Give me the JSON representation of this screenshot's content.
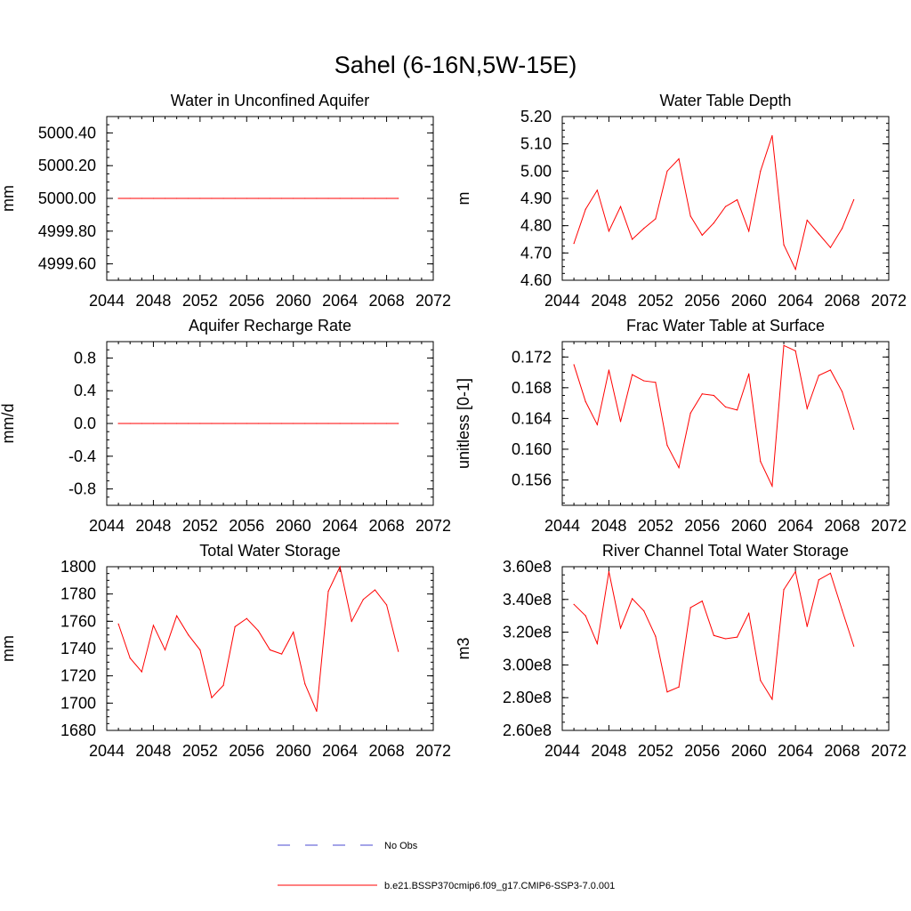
{
  "figure_title": "Sahel (6-16N,5W-15E)",
  "legend": {
    "entries": [
      {
        "label": "No Obs",
        "color": "#4a4ad0",
        "dash": true
      },
      {
        "label": "b.e21.BSSP370cmip6.f09_g17.CMIP6-SSP3-7.0.001",
        "color": "#ff0000",
        "dash": false
      }
    ]
  },
  "colors": {
    "series": "#ff0000",
    "axis": "#000000"
  },
  "chart_data": [
    {
      "type": "line",
      "title": "Water in Unconfined Aquifer",
      "xlabel": "",
      "ylabel": "mm",
      "xlim": [
        2044,
        2072
      ],
      "ylim": [
        4999.5,
        5000.5
      ],
      "xticks": [
        "2044",
        "2048",
        "2052",
        "2056",
        "2060",
        "2064",
        "2068",
        "2072"
      ],
      "yticks": [
        "4999.60",
        "4999.80",
        "5000.00",
        "5000.20",
        "5000.40"
      ],
      "series": [
        {
          "x": [
            2045,
            2046,
            2047,
            2048,
            2049,
            2050,
            2051,
            2052,
            2053,
            2054,
            2055,
            2056,
            2057,
            2058,
            2059,
            2060,
            2061,
            2062,
            2063,
            2064,
            2065,
            2066,
            2067,
            2068,
            2069
          ],
          "values": [
            5000,
            5000,
            5000,
            5000,
            5000,
            5000,
            5000,
            5000,
            5000,
            5000,
            5000,
            5000,
            5000,
            5000,
            5000,
            5000,
            5000,
            5000,
            5000,
            5000,
            5000,
            5000,
            5000,
            5000,
            5000
          ]
        }
      ]
    },
    {
      "type": "line",
      "title": "Water Table Depth",
      "xlabel": "",
      "ylabel": "m",
      "xlim": [
        2044,
        2072
      ],
      "ylim": [
        4.6,
        5.2
      ],
      "xticks": [
        "2044",
        "2048",
        "2052",
        "2056",
        "2060",
        "2064",
        "2068",
        "2072"
      ],
      "yticks": [
        "4.60",
        "4.70",
        "4.80",
        "4.90",
        "5.00",
        "5.10",
        "5.20"
      ],
      "series": [
        {
          "x": [
            2045,
            2046,
            2047,
            2048,
            2049,
            2050,
            2051,
            2052,
            2053,
            2054,
            2055,
            2056,
            2057,
            2058,
            2059,
            2060,
            2061,
            2062,
            2063,
            2064,
            2065,
            2066,
            2067,
            2068,
            2069
          ],
          "values": [
            4.735,
            4.86,
            4.93,
            4.78,
            4.87,
            4.75,
            4.79,
            4.825,
            5.0,
            5.045,
            4.835,
            4.765,
            4.81,
            4.87,
            4.895,
            4.78,
            5.0,
            5.13,
            4.73,
            4.64,
            4.82,
            4.77,
            4.72,
            4.79,
            4.895
          ]
        }
      ]
    },
    {
      "type": "line",
      "title": "Aquifer Recharge Rate",
      "xlabel": "",
      "ylabel": "mm/d",
      "xlim": [
        2044,
        2072
      ],
      "ylim": [
        -1.0,
        1.0
      ],
      "xticks": [
        "2044",
        "2048",
        "2052",
        "2056",
        "2060",
        "2064",
        "2068",
        "2072"
      ],
      "yticks": [
        "-0.8",
        "-0.4",
        "0.0",
        "0.4",
        "0.8"
      ],
      "series": [
        {
          "x": [
            2045,
            2046,
            2047,
            2048,
            2049,
            2050,
            2051,
            2052,
            2053,
            2054,
            2055,
            2056,
            2057,
            2058,
            2059,
            2060,
            2061,
            2062,
            2063,
            2064,
            2065,
            2066,
            2067,
            2068,
            2069
          ],
          "values": [
            0,
            0,
            0,
            0,
            0,
            0,
            0,
            0,
            0,
            0,
            0,
            0,
            0,
            0,
            0,
            0,
            0,
            0,
            0,
            0,
            0,
            0,
            0,
            0,
            0
          ]
        }
      ]
    },
    {
      "type": "line",
      "title": "Frac Water Table at Surface",
      "xlabel": "",
      "ylabel": "unitless [0-1]",
      "xlim": [
        2044,
        2072
      ],
      "ylim": [
        0.1527,
        0.174
      ],
      "xticks": [
        "2044",
        "2048",
        "2052",
        "2056",
        "2060",
        "2064",
        "2068",
        "2072"
      ],
      "yticks": [
        "0.156",
        "0.160",
        "0.164",
        "0.168",
        "0.172"
      ],
      "series": [
        {
          "x": [
            2045,
            2046,
            2047,
            2048,
            2049,
            2050,
            2051,
            2052,
            2053,
            2054,
            2055,
            2056,
            2057,
            2058,
            2059,
            2060,
            2061,
            2062,
            2063,
            2064,
            2065,
            2066,
            2067,
            2068,
            2069
          ],
          "values": [
            0.171,
            0.1662,
            0.1632,
            0.1703,
            0.1636,
            0.1697,
            0.1689,
            0.1687,
            0.1605,
            0.1576,
            0.1647,
            0.1672,
            0.167,
            0.1655,
            0.1651,
            0.1698,
            0.1584,
            0.1552,
            0.1735,
            0.1728,
            0.1653,
            0.1696,
            0.1703,
            0.1675,
            0.1626
          ]
        }
      ]
    },
    {
      "type": "line",
      "title": "Total Water Storage",
      "xlabel": "",
      "ylabel": "mm",
      "xlim": [
        2044,
        2072
      ],
      "ylim": [
        1680,
        1800
      ],
      "xticks": [
        "2044",
        "2048",
        "2052",
        "2056",
        "2060",
        "2064",
        "2068",
        "2072"
      ],
      "yticks": [
        "1680",
        "1700",
        "1720",
        "1740",
        "1760",
        "1780",
        "1800"
      ],
      "series": [
        {
          "x": [
            2045,
            2046,
            2047,
            2048,
            2049,
            2050,
            2051,
            2052,
            2053,
            2054,
            2055,
            2056,
            2057,
            2058,
            2059,
            2060,
            2061,
            2062,
            2063,
            2064,
            2065,
            2066,
            2067,
            2068,
            2069
          ],
          "values": [
            1758,
            1733,
            1723,
            1757,
            1739,
            1764,
            1750,
            1739,
            1704,
            1713,
            1756,
            1762,
            1753,
            1739,
            1736,
            1752,
            1714,
            1694,
            1782,
            1800,
            1760,
            1776,
            1783,
            1772,
            1738
          ]
        }
      ]
    },
    {
      "type": "line",
      "title": "River Channel Total Water Storage",
      "xlabel": "",
      "ylabel": "m3",
      "xlim": [
        2044,
        2072
      ],
      "ylim": [
        260000000.0,
        360000000.0
      ],
      "xticks": [
        "2044",
        "2048",
        "2052",
        "2056",
        "2060",
        "2064",
        "2068",
        "2072"
      ],
      "yticks": [
        "2.60e8",
        "2.80e8",
        "3.00e8",
        "3.20e8",
        "3.40e8",
        "3.60e8"
      ],
      "series": [
        {
          "x": [
            2045,
            2046,
            2047,
            2048,
            2049,
            2050,
            2051,
            2052,
            2053,
            2054,
            2055,
            2056,
            2057,
            2058,
            2059,
            2060,
            2061,
            2062,
            2063,
            2064,
            2065,
            2066,
            2067,
            2068,
            2069
          ],
          "values": [
            337000000.0,
            330000000.0,
            313000000.0,
            357000000.0,
            322500000.0,
            340500000.0,
            333000000.0,
            317500000.0,
            283500000.0,
            286500000.0,
            335000000.0,
            339000000.0,
            318000000.0,
            316000000.0,
            317000000.0,
            331500000.0,
            290500000.0,
            279000000.0,
            346000000.0,
            357000000.0,
            323500000.0,
            352000000.0,
            356000000.0,
            333500000.0,
            311500000.0
          ]
        }
      ]
    }
  ]
}
